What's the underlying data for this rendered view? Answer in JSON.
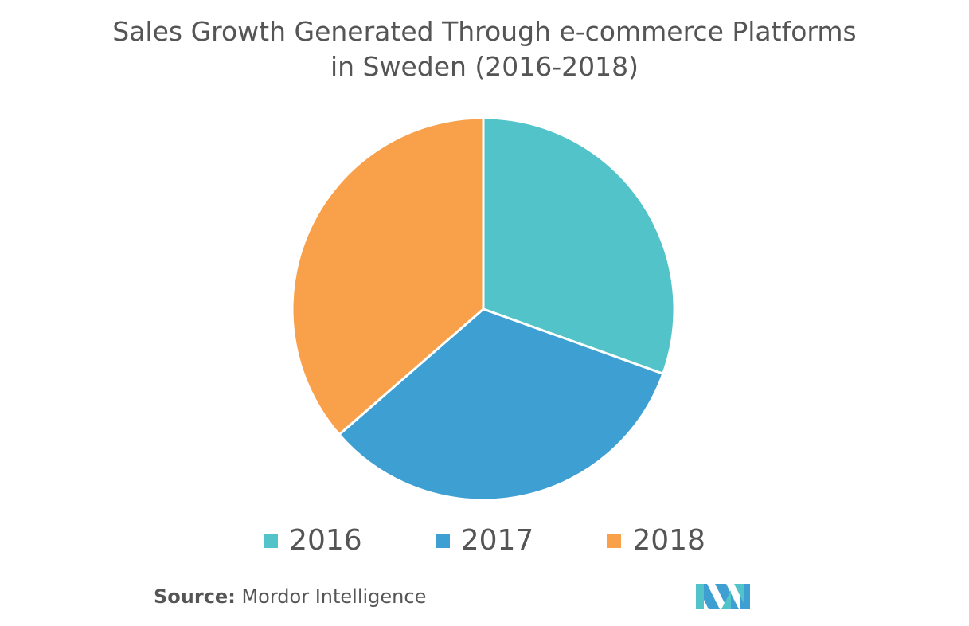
{
  "title": {
    "line1": "Sales Growth Generated Through e-commerce Platforms",
    "line2": "in Sweden (2016-2018)"
  },
  "source": {
    "label": "Source:",
    "text": "Mordor Intelligence"
  },
  "logo": {
    "icon": "mordor-intelligence-logo-icon",
    "colors": [
      "#3e9fd3",
      "#52c3c8"
    ]
  },
  "chart_data": {
    "type": "pie",
    "categories": [
      "2016",
      "2017",
      "2018"
    ],
    "values": [
      30.5,
      33.1,
      36.4
    ],
    "colors": [
      "#52c3c8",
      "#3e9fd3",
      "#f9a04b"
    ],
    "start_angle_deg": 0,
    "direction": "clockwise",
    "legend_position": "bottom"
  }
}
